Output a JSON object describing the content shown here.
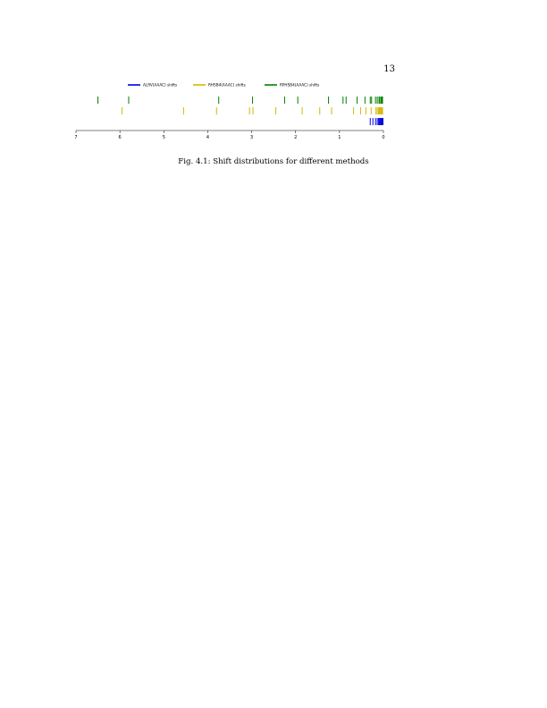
{
  "page": {
    "number": "13"
  },
  "caption": "Fig. 4.1: Shift distributions for different methods",
  "chart_data": {
    "type": "scatter",
    "title": "",
    "xlabel": "",
    "ylabel": "",
    "xlim": [
      7,
      0
    ],
    "x_ticks": [
      "7",
      "6",
      "5",
      "4",
      "3",
      "2",
      "1",
      "0"
    ],
    "legend_position": "top",
    "series": [
      {
        "name": "ALRV(AAAC) shifts",
        "color": "#0000dd",
        "values": [
          0.3,
          0.24,
          0.18,
          0.14,
          0.11,
          0.09,
          0.07,
          0.05,
          0.04,
          0.03,
          0.02,
          0.01
        ]
      },
      {
        "name": "RHSB4(AAAC) shifts",
        "color": "#d4b800",
        "values": [
          5.95,
          4.55,
          3.8,
          3.05,
          2.97,
          2.45,
          1.85,
          1.45,
          1.18,
          0.68,
          0.52,
          0.4,
          0.28,
          0.17,
          0.14,
          0.11,
          0.09,
          0.07,
          0.05,
          0.03,
          0.02
        ]
      },
      {
        "name": "RPHSB4(AAAC) shifts",
        "color": "#008000",
        "values": [
          6.5,
          5.8,
          3.75,
          2.98,
          2.25,
          1.95,
          1.25,
          0.92,
          0.85,
          0.6,
          0.42,
          0.3,
          0.27,
          0.18,
          0.14,
          0.1,
          0.08,
          0.05,
          0.03,
          0.02
        ]
      }
    ]
  }
}
